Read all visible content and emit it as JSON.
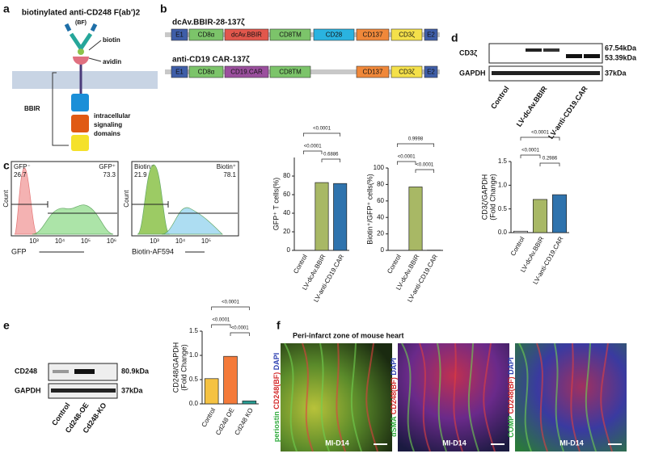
{
  "panel_labels": [
    "a",
    "b",
    "c",
    "d",
    "e",
    "f"
  ],
  "a": {
    "title": "biotinylated anti-CD248 F(ab')2",
    "subtitle": "(BF)",
    "biotin": "biotin",
    "avidin": "avidin",
    "bbir": "BBIR",
    "domains": [
      "intracellular",
      "signaling",
      "domains"
    ]
  },
  "b": {
    "constructs": [
      {
        "name": "dcAv.BBIR-28-137ζ",
        "segments": [
          {
            "text": "E1",
            "color": "#3f5ea8"
          },
          {
            "text": "CD8α",
            "color": "#7cc46a"
          },
          {
            "text": "dcAv.BBIR",
            "color": "#e2574c"
          },
          {
            "text": "CD8TM",
            "color": "#7cc46a"
          },
          {
            "text": "CD28",
            "color": "#2ab3e0"
          },
          {
            "text": "CD137",
            "color": "#f0883a"
          },
          {
            "text": "CD3ζ",
            "color": "#f4e04a"
          },
          {
            "text": "E2",
            "color": "#3f5ea8"
          }
        ]
      },
      {
        "name": "anti-CD19 CAR-137ζ",
        "segments": [
          {
            "text": "E1",
            "color": "#3f5ea8"
          },
          {
            "text": "CD8α",
            "color": "#7cc46a"
          },
          {
            "text": "CD19.CAR",
            "color": "#9b4f9e"
          },
          {
            "text": "CD8TM",
            "color": "#7cc46a"
          },
          {
            "text": "CD137",
            "color": "#f0883a"
          },
          {
            "text": "CD3ζ",
            "color": "#f4e04a"
          },
          {
            "text": "E2",
            "color": "#3f5ea8"
          }
        ]
      }
    ]
  },
  "c_flow": [
    {
      "neg": "GFP⁻",
      "neg_pct": "26.7",
      "pos": "GFP⁺",
      "pos_pct": "73.3",
      "xlabel": "GFP",
      "ylabel": "Count",
      "xticks": [
        "10³",
        "10⁴",
        "10⁵",
        "10⁶"
      ]
    },
    {
      "neg": "Biotin⁻",
      "neg_pct": "21.9",
      "pos": "Biotin⁺",
      "pos_pct": "78.1",
      "xlabel": "Biotin-AF594",
      "ylabel": "Count",
      "xticks": [
        "10³",
        "10⁴",
        "10⁵"
      ]
    }
  ],
  "d_blot": {
    "rows": [
      "CD3ζ",
      "GAPDH"
    ],
    "sizes": [
      "67.54kDa",
      "53.39kDa",
      "37kDa"
    ],
    "lanes": [
      "Control",
      "LV-dcAv.BBIR",
      "LV-anti-CD19.CAR"
    ]
  },
  "e_blot": {
    "rows": [
      "CD248",
      "GAPDH"
    ],
    "sizes": [
      "80.9kDa",
      "37kDa"
    ],
    "lanes": [
      "Control",
      "Cd248-OE",
      "Cd248-KO"
    ]
  },
  "chart_data": [
    {
      "type": "bar",
      "ylabel": [
        "GFP⁺ T cells(%)"
      ],
      "categories": [
        "Control",
        "LV-dcAv.BBIR",
        "LV-anti-CD19.CAR"
      ],
      "values": [
        0.1,
        73,
        72
      ],
      "colors": [
        "#e8e8e8",
        "#a8b865",
        "#2f73ad"
      ],
      "ylim": [
        0,
        100
      ],
      "yticks": [
        0,
        20,
        40,
        60,
        80
      ],
      "annotations": [
        "<0.0001",
        "<0.0001",
        "0.6886"
      ]
    },
    {
      "type": "bar",
      "ylabel": [
        "Biotin⁺/GFP⁺ cells(%)"
      ],
      "categories": [
        "Control",
        "LV-dcAv.BBIR",
        "LV-anti-CD19.CAR"
      ],
      "values": [
        0.1,
        77,
        0.3
      ],
      "colors": [
        "#e8e8e8",
        "#a8b865",
        "#2f73ad"
      ],
      "ylim": [
        0,
        100
      ],
      "yticks": [
        0,
        20,
        40,
        60,
        80,
        100
      ],
      "annotations": [
        "0.9998",
        "<0.0001",
        "<0.0001"
      ]
    },
    {
      "type": "bar",
      "ylabel": [
        "CD3ζ/GAPDH",
        "(Fold Change)"
      ],
      "categories": [
        "Control",
        "LV-dcAv.BBIR",
        "LV-anti-CD19.CAR"
      ],
      "values": [
        0.03,
        0.7,
        0.8
      ],
      "colors": [
        "#e8e8e8",
        "#a8b865",
        "#2f73ad"
      ],
      "ylim": [
        0,
        1.5
      ],
      "yticks": [
        {
          "value": 0,
          "label": "0.0"
        },
        {
          "value": 0.5,
          "label": "0.5"
        },
        {
          "value": 1,
          "label": "1.0"
        },
        {
          "value": 1.5,
          "label": "1.5"
        }
      ],
      "annotations": [
        "<0.0001",
        "<0.0001",
        "0.2986"
      ]
    },
    {
      "type": "bar",
      "ylabel": [
        "CD248/GAPDH",
        "(Fold Change)"
      ],
      "categories": [
        "Control",
        "Cd248 OE",
        "Cd248 KO"
      ],
      "values": [
        0.52,
        0.98,
        0.06
      ],
      "colors": [
        "#f5c242",
        "#f47a3a",
        "#2a9e94"
      ],
      "ylim": [
        0,
        1.5
      ],
      "yticks": [
        {
          "value": 0,
          "label": "0.0"
        },
        {
          "value": 0.5,
          "label": "0.5"
        },
        {
          "value": 1,
          "label": "1.0"
        },
        {
          "value": 1.5,
          "label": "1.5"
        }
      ],
      "annotations": [
        "<0.0001",
        "<0.0001",
        "<0.0001"
      ]
    }
  ],
  "f": {
    "title": "Peri-infarct zone of mouse heart",
    "images": [
      {
        "stains": [
          {
            "text": "periostin",
            "color": "#2faa3c"
          },
          {
            "text": " CD248(BF)",
            "color": "#d42a2a"
          },
          {
            "text": " DAPI",
            "color": "#2c3fb0"
          }
        ],
        "tag": "MI-D14"
      },
      {
        "stains": [
          {
            "text": "αSMA",
            "color": "#2faa3c"
          },
          {
            "text": " CD248(BF)",
            "color": "#d42a2a"
          },
          {
            "text": " DAPI",
            "color": "#2c3fb0"
          }
        ],
        "tag": "MI-D14"
      },
      {
        "stains": [
          {
            "text": "COMP",
            "color": "#2faa3c"
          },
          {
            "text": " CD248(BF)",
            "color": "#d42a2a"
          },
          {
            "text": " DAPI",
            "color": "#2c3fb0"
          }
        ],
        "tag": "MI-D14"
      }
    ]
  }
}
